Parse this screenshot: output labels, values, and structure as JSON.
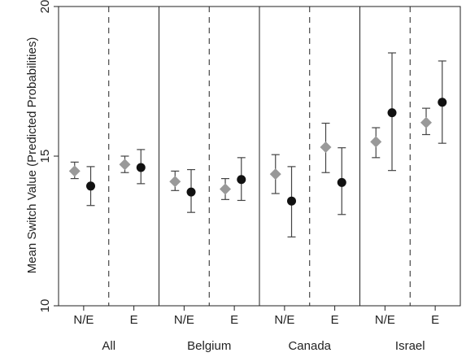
{
  "chart_data": {
    "type": "scatter",
    "ylabel": "Mean Switch Value (Predicted Probabilities)",
    "ylim": [
      10,
      20
    ],
    "yticks": [
      10,
      15,
      20
    ],
    "grid": false,
    "groups": [
      {
        "label": "All",
        "subgroups": [
          {
            "label": "N/E",
            "diamond": {
              "value": 14.5,
              "low": 14.25,
              "high": 14.8
            },
            "circle": {
              "value": 14.0,
              "low": 13.35,
              "high": 14.65
            }
          },
          {
            "label": "E",
            "diamond": {
              "value": 14.72,
              "low": 14.45,
              "high": 15.0
            },
            "circle": {
              "value": 14.62,
              "low": 14.08,
              "high": 15.22
            }
          }
        ]
      },
      {
        "label": "Belgium",
        "subgroups": [
          {
            "label": "N/E",
            "diamond": {
              "value": 14.15,
              "low": 13.85,
              "high": 14.5
            },
            "circle": {
              "value": 13.8,
              "low": 13.12,
              "high": 14.55
            }
          },
          {
            "label": "E",
            "diamond": {
              "value": 13.9,
              "low": 13.55,
              "high": 14.25
            },
            "circle": {
              "value": 14.22,
              "low": 13.52,
              "high": 14.95
            }
          }
        ]
      },
      {
        "label": "Canada",
        "subgroups": [
          {
            "label": "N/E",
            "diamond": {
              "value": 14.4,
              "low": 13.75,
              "high": 15.05
            },
            "circle": {
              "value": 13.5,
              "low": 12.3,
              "high": 14.65
            }
          },
          {
            "label": "E",
            "diamond": {
              "value": 15.3,
              "low": 14.45,
              "high": 16.1
            },
            "circle": {
              "value": 14.12,
              "low": 13.05,
              "high": 15.28
            }
          }
        ]
      },
      {
        "label": "Israel",
        "subgroups": [
          {
            "label": "N/E",
            "diamond": {
              "value": 15.48,
              "low": 14.95,
              "high": 15.95
            },
            "circle": {
              "value": 16.45,
              "low": 14.52,
              "high": 18.45
            }
          },
          {
            "label": "E",
            "diamond": {
              "value": 16.12,
              "low": 15.72,
              "high": 16.6
            },
            "circle": {
              "value": 16.8,
              "low": 15.43,
              "high": 18.18
            }
          }
        ]
      }
    ],
    "colors": {
      "diamond": "#999999",
      "circle": "#111111",
      "errorbar": "#444444",
      "frame": "#222222",
      "divider": "#222222"
    }
  }
}
